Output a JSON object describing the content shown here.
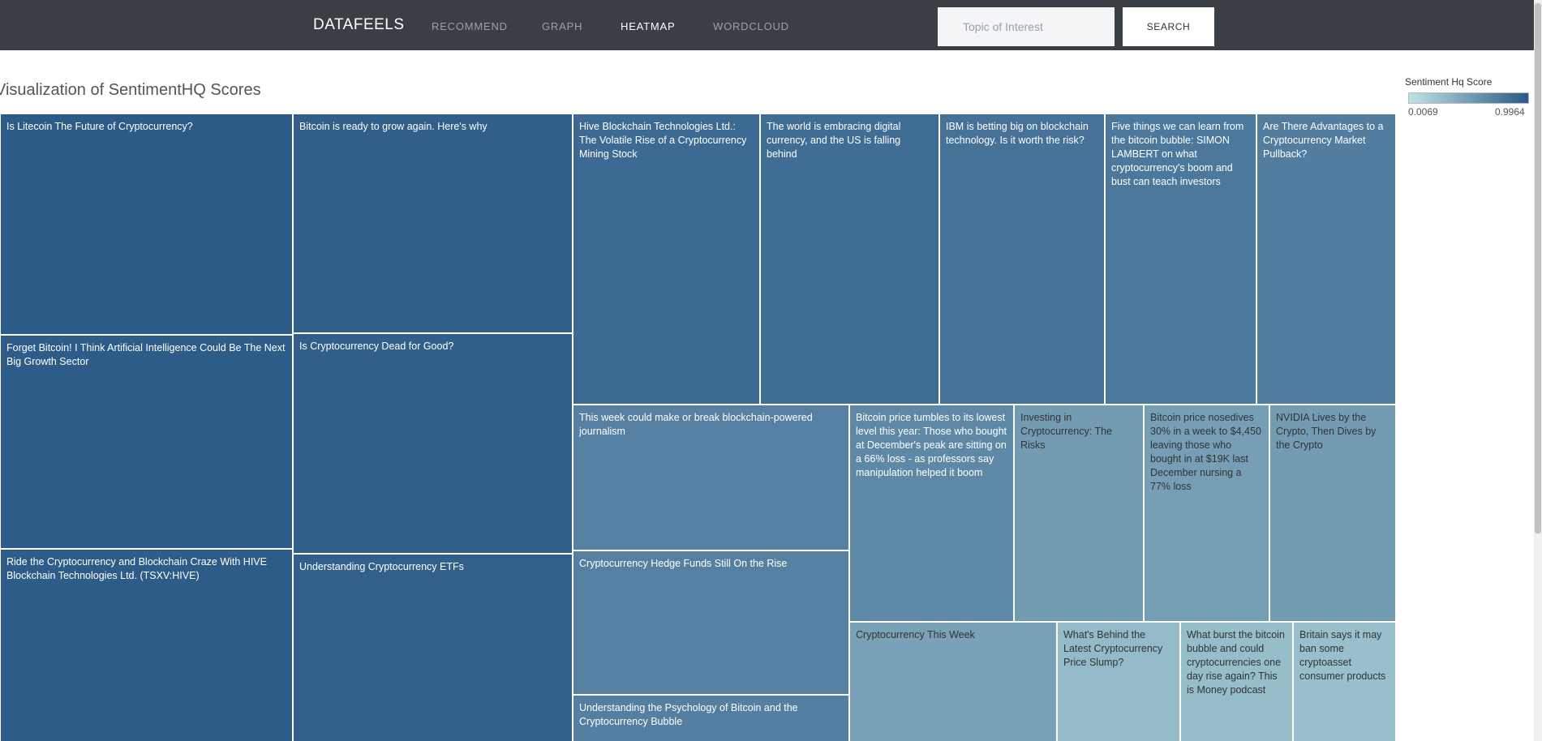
{
  "header": {
    "brand": "DATAFEELS",
    "nav": [
      {
        "label": "RECOMMEND",
        "active": false
      },
      {
        "label": "GRAPH",
        "active": false
      },
      {
        "label": "HEATMAP",
        "active": true
      },
      {
        "label": "WORDCLOUD",
        "active": false
      }
    ],
    "search_placeholder": "Topic of Interest",
    "search_value": "",
    "search_button": "SEARCH"
  },
  "viz_title": "Visualization of SentimentHQ Scores",
  "legend": {
    "title": "Sentiment Hq Score",
    "min_label": "0.0069",
    "max_label": "0.9964",
    "color_low": "#bfe3e3",
    "color_high": "#2c5a87"
  },
  "colors": {
    "header_bg": "#3a3f45",
    "text_dark": "#333333",
    "text_light": "#ffffff"
  },
  "chart_data": {
    "type": "heatmap",
    "color_metric": "Sentiment Hq Score",
    "color_range": [
      0.0069,
      0.9964
    ],
    "cells": [
      {
        "label": "Is Litecoin The Future of Cryptocurrency?",
        "score": 0.99
      },
      {
        "label": "Forget Bitcoin! I Think Artificial Intelligence Could Be The Next Big Growth Sector",
        "score": 0.98
      },
      {
        "label": "Ride the Cryptocurrency and Blockchain Craze With HIVE Blockchain Technologies Ltd. (TSXV:HIVE)",
        "score": 0.98
      },
      {
        "label": "Bitcoin is ready to grow again. Here's why",
        "score": 0.96
      },
      {
        "label": "Is Cryptocurrency Dead for Good?",
        "score": 0.96
      },
      {
        "label": "Understanding Cryptocurrency ETFs",
        "score": 0.95
      },
      {
        "label": "Hive Blockchain Technologies Ltd.: The Volatile Rise of a Cryptocurrency Mining Stock",
        "score": 0.88
      },
      {
        "label": "The world is embracing digital currency, and the US is falling behind",
        "score": 0.86
      },
      {
        "label": "IBM is betting big on blockchain technology. Is it worth the risk?",
        "score": 0.82
      },
      {
        "label": "Five things we can learn from the bitcoin bubble: SIMON LAMBERT on what cryptocurrency's boom and bust can teach investors",
        "score": 0.78
      },
      {
        "label": "Are There Advantages to a Cryptocurrency Market Pullback?",
        "score": 0.74
      },
      {
        "label": "This week could make  or break  blockchain-powered journalism",
        "score": 0.72
      },
      {
        "label": "Cryptocurrency Hedge Funds Still On the Rise",
        "score": 0.72
      },
      {
        "label": "Understanding the Psychology of Bitcoin and the Cryptocurrency Bubble",
        "score": 0.73
      },
      {
        "label": "Bitcoin price tumbles to its lowest level this year: Those who bought at December's peak are sitting on a 66% loss - as professors say manipulation helped it boom",
        "score": 0.66
      },
      {
        "label": "Investing in Cryptocurrency: The Risks",
        "score": 0.52
      },
      {
        "label": "Bitcoin price nosedives 30% in a week to $4,450 leaving those who bought in at $19K last December nursing a 77% loss",
        "score": 0.5
      },
      {
        "label": "NVIDIA Lives by the Crypto, Then Dives by the Crypto",
        "score": 0.52
      },
      {
        "label": "Cryptocurrency This Week",
        "score": 0.48
      },
      {
        "label": "What's Behind the Latest Cryptocurrency Price Slump?",
        "score": 0.3
      },
      {
        "label": "What burst the bitcoin bubble and could cryptocurrencies one day rise again? This is Money podcast",
        "score": 0.28
      },
      {
        "label": "Britain says it may ban some cryptoasset consumer products",
        "score": 0.27
      }
    ]
  }
}
